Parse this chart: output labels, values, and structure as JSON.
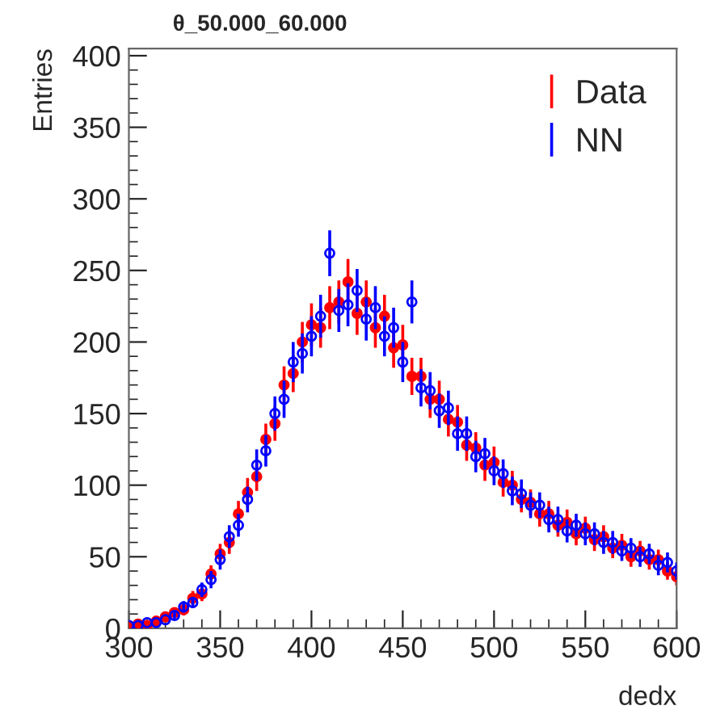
{
  "chart_data": {
    "type": "scatter",
    "title": "θ_50.000_60.000",
    "xlabel": "dedx",
    "ylabel": "Entries",
    "x": [
      300,
      305,
      310,
      315,
      320,
      325,
      330,
      335,
      340,
      345,
      350,
      355,
      360,
      365,
      370,
      375,
      380,
      385,
      390,
      395,
      400,
      405,
      410,
      415,
      420,
      425,
      430,
      435,
      440,
      445,
      450,
      455,
      460,
      465,
      470,
      475,
      480,
      485,
      490,
      495,
      500,
      505,
      510,
      515,
      520,
      525,
      530,
      535,
      540,
      545,
      550,
      555,
      560,
      565,
      570,
      575,
      580,
      585,
      590,
      595,
      600
    ],
    "series": [
      {
        "name": "Data",
        "color": "#ff0000",
        "values": [
          1,
          3,
          2,
          5,
          8,
          11,
          13,
          21,
          24,
          38,
          52,
          60,
          80,
          95,
          106,
          132,
          143,
          170,
          178,
          200,
          212,
          210,
          224,
          228,
          242,
          220,
          228,
          210,
          218,
          196,
          198,
          176,
          176,
          160,
          160,
          146,
          144,
          128,
          126,
          114,
          116,
          102,
          100,
          90,
          88,
          80,
          80,
          72,
          74,
          66,
          70,
          62,
          64,
          56,
          58,
          50,
          54,
          48,
          48,
          40,
          36
        ],
        "errors": [
          null,
          null,
          null,
          null,
          3,
          3,
          4,
          5,
          5,
          6,
          7,
          8,
          9,
          10,
          10,
          11,
          12,
          13,
          13,
          14,
          15,
          14,
          15,
          15,
          16,
          15,
          15,
          14,
          15,
          14,
          14,
          13,
          13,
          13,
          13,
          12,
          12,
          11,
          11,
          11,
          11,
          10,
          10,
          9,
          9,
          9,
          9,
          8,
          9,
          8,
          8,
          8,
          8,
          7,
          8,
          7,
          7,
          7,
          7,
          6,
          6
        ]
      },
      {
        "name": "NN",
        "color": "#0000ff",
        "values": [
          2,
          2,
          4,
          4,
          6,
          9,
          15,
          18,
          27,
          34,
          48,
          64,
          72,
          90,
          114,
          124,
          150,
          160,
          186,
          192,
          204,
          218,
          262,
          222,
          226,
          236,
          216,
          224,
          204,
          210,
          186,
          228,
          168,
          166,
          152,
          154,
          136,
          136,
          120,
          122,
          110,
          108,
          96,
          94,
          86,
          86,
          76,
          76,
          68,
          72,
          66,
          66,
          60,
          60,
          54,
          56,
          50,
          52,
          44,
          46,
          40
        ],
        "errors": [
          null,
          null,
          null,
          null,
          null,
          3,
          4,
          4,
          5,
          6,
          7,
          8,
          8,
          9,
          11,
          11,
          12,
          13,
          14,
          14,
          14,
          15,
          16,
          15,
          15,
          15,
          15,
          15,
          14,
          14,
          14,
          15,
          13,
          13,
          12,
          12,
          12,
          12,
          11,
          11,
          10,
          10,
          10,
          10,
          9,
          9,
          9,
          9,
          8,
          8,
          8,
          8,
          8,
          8,
          7,
          7,
          7,
          7,
          7,
          7,
          6
        ]
      }
    ],
    "xlim": [
      300,
      600
    ],
    "ylim": [
      0,
      405
    ],
    "xticks": [
      300,
      350,
      400,
      450,
      500,
      550,
      600
    ],
    "yticks": [
      0,
      50,
      100,
      150,
      200,
      250,
      300,
      350,
      400
    ],
    "marker": "circle",
    "grid": false,
    "legend": "top right"
  }
}
